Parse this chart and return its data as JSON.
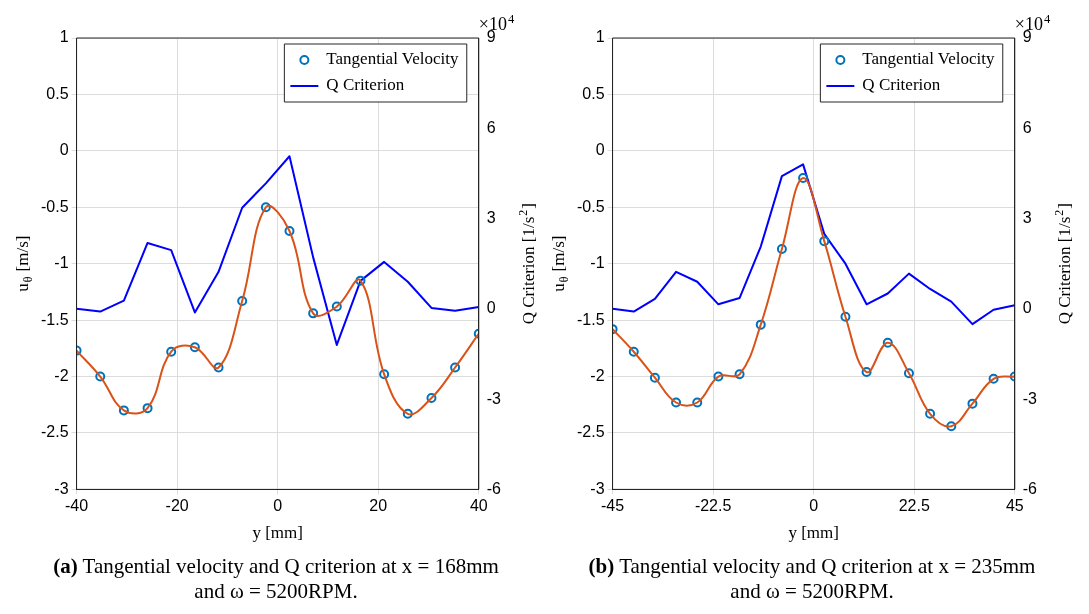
{
  "chart_data": [
    {
      "type": "scatter",
      "xlabel": "y [mm]",
      "ylabel": "u$_{θ}$ [m/s]",
      "y2label": "Q Criterion [1/s$^{2}$]",
      "annotations": [
        "×10$^{4}$",
        "(a)",
        "Tangential velocity and Q criterion at x = 168mm and ω = 5200RPM."
      ],
      "xlim": [
        -40,
        40
      ],
      "xticks": [
        -40,
        -20,
        0,
        20,
        40
      ],
      "ylim": [
        -3,
        1
      ],
      "yticks": [
        -3,
        -2.5,
        -2,
        -1.5,
        -1,
        -0.5,
        0,
        0.5,
        1
      ],
      "y2lim": [
        -6,
        9
      ],
      "y2ticks": [
        -6,
        -3,
        0,
        3,
        6,
        9
      ],
      "grid": true,
      "legend": "top right",
      "series": [
        {
          "type": "line",
          "color": "#d95319",
          "marker": "none",
          "x": [
            -40,
            -35.29,
            -30.59,
            -25.88,
            -21.18,
            -16.47,
            -11.76,
            -7.06,
            -2.35,
            2.35,
            7.06,
            11.76,
            16.47,
            21.18,
            25.88,
            30.59,
            35.29,
            40
          ],
          "values": [
            -1.77,
            -2.0,
            -2.3,
            -2.28,
            -1.78,
            -1.74,
            -1.92,
            -1.33,
            -0.5,
            -0.71,
            -1.44,
            -1.38,
            -1.15,
            -1.98,
            -2.33,
            -2.19,
            -1.92,
            -1.62
          ]
        },
        {
          "type": "scatter",
          "name": "Tangential Velocity",
          "color": "#0072bd",
          "marker": "circle",
          "x": [
            -40,
            -35.29,
            -30.59,
            -25.88,
            -21.18,
            -16.47,
            -11.76,
            -7.06,
            -2.35,
            2.35,
            7.06,
            11.76,
            16.47,
            21.18,
            25.88,
            30.59,
            35.29,
            40
          ],
          "values": [
            -1.77,
            -2.0,
            -2.3,
            -2.28,
            -1.78,
            -1.74,
            -1.92,
            -1.33,
            -0.5,
            -0.71,
            -1.44,
            -1.38,
            -1.15,
            -1.98,
            -2.33,
            -2.19,
            -1.92,
            -1.62
          ]
        },
        {
          "type": "line",
          "name": "Q Criterion",
          "color": "#0000ff",
          "marker": "none",
          "axis": "y2",
          "x": [
            -40,
            -35.29,
            -30.59,
            -25.88,
            -21.18,
            -16.47,
            -11.76,
            -7.06,
            -2.35,
            2.35,
            7.06,
            11.76,
            16.47,
            21.18,
            25.88,
            30.59,
            35.29,
            40
          ],
          "values": [
            0,
            -0.09,
            0.27,
            2.19,
            1.95,
            -0.12,
            1.23,
            3.36,
            4.17,
            5.07,
            1.71,
            -1.2,
            0.93,
            1.56,
            0.9,
            0.03,
            -0.06,
            0.06
          ]
        }
      ]
    },
    {
      "type": "scatter",
      "xlabel": "y [mm]",
      "ylabel": "u$_{θ}$ [m/s]",
      "y2label": "Q Criterion [1/s$^{2}$]",
      "annotations": [
        "×10$^{4}$",
        "(b)",
        "Tangential velocity and Q criterion at x = 235mm and ω = 5200RPM."
      ],
      "xlim": [
        -45,
        45
      ],
      "xticks": [
        -45,
        -22.5,
        0,
        22.5,
        45
      ],
      "ylim": [
        -3,
        1
      ],
      "yticks": [
        -3,
        -2.5,
        -2,
        -1.5,
        -1,
        -0.5,
        0,
        0.5,
        1
      ],
      "y2lim": [
        -6,
        9
      ],
      "y2ticks": [
        -6,
        -3,
        0,
        3,
        6,
        9
      ],
      "grid": true,
      "legend": "top right",
      "series": [
        {
          "type": "line",
          "color": "#d95319",
          "marker": "none",
          "x": [
            -45,
            -40.26,
            -35.53,
            -30.79,
            -26.05,
            -21.32,
            -16.58,
            -11.84,
            -7.11,
            -2.37,
            2.37,
            7.11,
            11.84,
            16.58,
            21.32,
            26.05,
            30.79,
            35.53,
            40.26,
            45
          ],
          "values": [
            -1.58,
            -1.78,
            -2.01,
            -2.23,
            -2.23,
            -2.0,
            -1.98,
            -1.54,
            -0.87,
            -0.24,
            -0.8,
            -1.47,
            -1.96,
            -1.7,
            -1.97,
            -2.33,
            -2.44,
            -2.24,
            -2.02,
            -2.0
          ]
        },
        {
          "type": "scatter",
          "name": "Tangential Velocity",
          "color": "#0072bd",
          "marker": "circle",
          "x": [
            -45,
            -40.26,
            -35.53,
            -30.79,
            -26.05,
            -21.32,
            -16.58,
            -11.84,
            -7.11,
            -2.37,
            2.37,
            7.11,
            11.84,
            16.58,
            21.32,
            26.05,
            30.79,
            35.53,
            40.26,
            45
          ],
          "values": [
            -1.58,
            -1.78,
            -2.01,
            -2.23,
            -2.23,
            -2.0,
            -1.98,
            -1.54,
            -0.87,
            -0.24,
            -0.8,
            -1.47,
            -1.96,
            -1.7,
            -1.97,
            -2.33,
            -2.44,
            -2.24,
            -2.02,
            -2.0
          ]
        },
        {
          "type": "line",
          "name": "Q Criterion",
          "color": "#0000ff",
          "marker": "none",
          "axis": "y2",
          "x": [
            -45,
            -40.26,
            -35.53,
            -30.79,
            -26.05,
            -21.32,
            -16.58,
            -11.84,
            -7.11,
            -2.37,
            2.37,
            7.11,
            11.84,
            16.58,
            21.32,
            26.05,
            30.79,
            35.53,
            40.26,
            45
          ],
          "values": [
            0,
            -0.09,
            0.33,
            1.23,
            0.9,
            0.15,
            0.36,
            2.07,
            4.41,
            4.8,
            2.49,
            1.5,
            0.15,
            0.51,
            1.17,
            0.66,
            0.24,
            -0.51,
            -0.03,
            0.12
          ]
        }
      ]
    }
  ]
}
